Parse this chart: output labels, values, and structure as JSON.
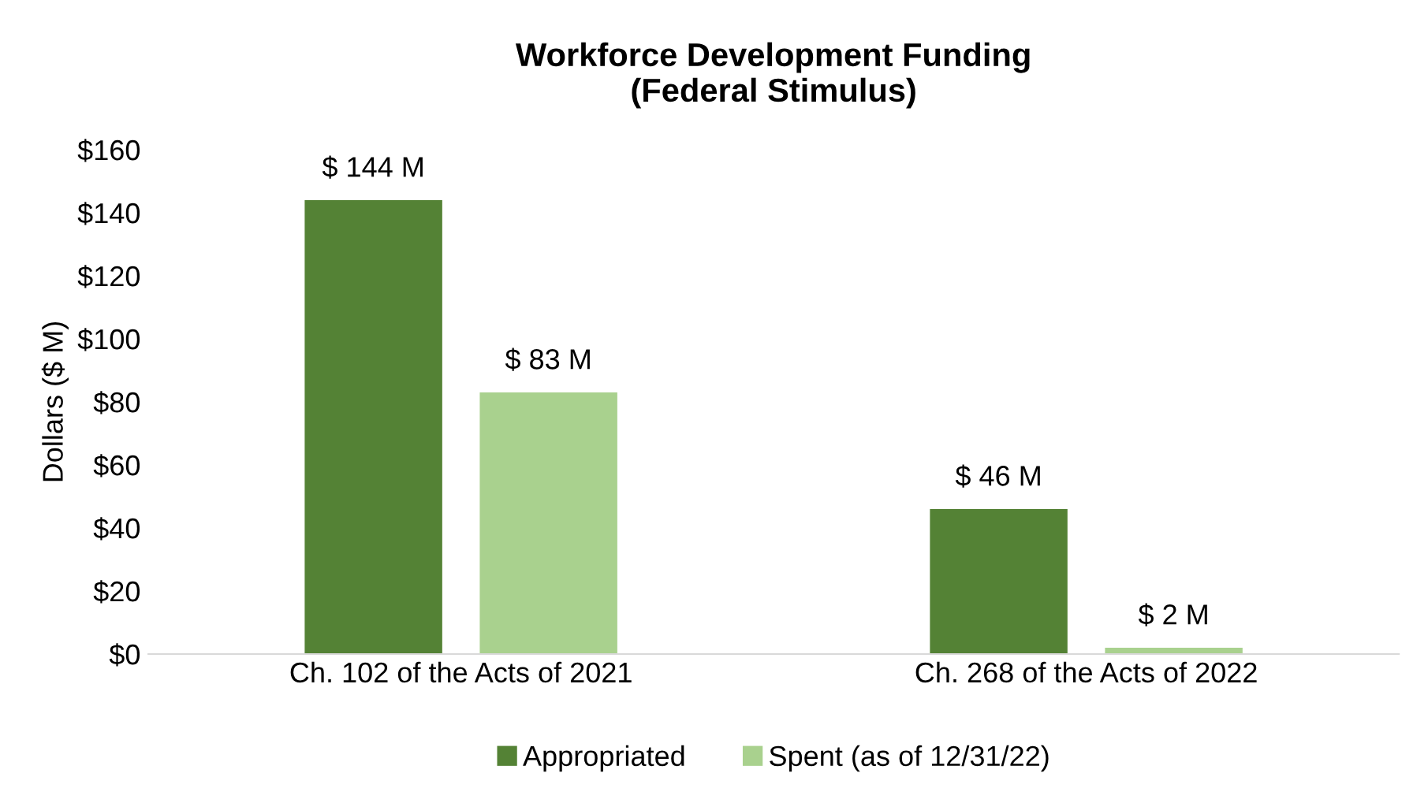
{
  "chart_data": {
    "type": "bar",
    "title": "Workforce Development Funding\n(Federal Stimulus)",
    "ylabel": "Dollars ($ M)",
    "categories": [
      "Ch. 102 of the Acts of 2021",
      "Ch. 268 of the Acts of 2022"
    ],
    "series": [
      {
        "name": "Appropriated",
        "color": "#548235",
        "values": [
          144,
          46
        ],
        "value_labels": [
          "$ 144 M",
          "$ 46 M"
        ]
      },
      {
        "name": "Spent (as of 12/31/22)",
        "color": "#a9d18e",
        "values": [
          83,
          2
        ],
        "value_labels": [
          "$ 83 M",
          "$ 2 M"
        ]
      }
    ],
    "ylim": [
      0,
      160
    ],
    "yticks": [
      {
        "value": 0,
        "label": "$0"
      },
      {
        "value": 20,
        "label": "$20"
      },
      {
        "value": 40,
        "label": "$40"
      },
      {
        "value": 60,
        "label": "$60"
      },
      {
        "value": 80,
        "label": "$80"
      },
      {
        "value": 100,
        "label": "$100"
      },
      {
        "value": 120,
        "label": "$120"
      },
      {
        "value": 140,
        "label": "$140"
      },
      {
        "value": 160,
        "label": "$160"
      }
    ],
    "legend": "bottom"
  }
}
